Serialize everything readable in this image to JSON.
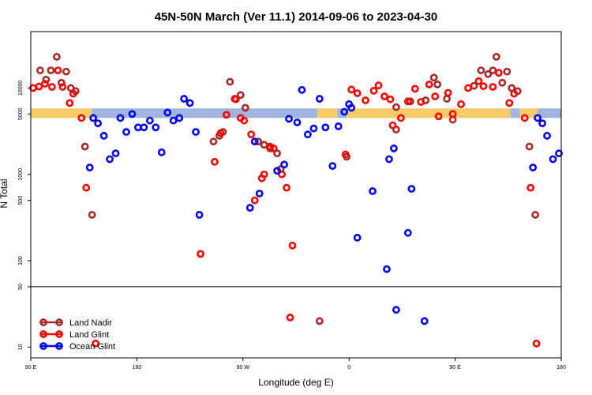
{
  "chart_data": {
    "type": "scatter",
    "title": "45N-50N March (Ver 11.1)   2014-09-06 to 2023-04-30",
    "xlabel": "Longitude (deg E)",
    "ylabel": "N Total",
    "y_scale": "log",
    "ylim": [
      7.5,
      45000
    ],
    "x_reference_line_at": 50,
    "x_ticks": [
      {
        "x": 90,
        "label": "90 E"
      },
      {
        "x": 180,
        "label": "180"
      },
      {
        "x": 270,
        "label": "90 W"
      },
      {
        "x": 360,
        "label": "0"
      },
      {
        "x": 450,
        "label": "90 E"
      },
      {
        "x": 540,
        "label": "180"
      }
    ],
    "y_ticks": [
      {
        "y": 10,
        "label": "10"
      },
      {
        "y": 50,
        "label": "50"
      },
      {
        "y": 100,
        "label": "100"
      },
      {
        "y": 500,
        "label": "500"
      },
      {
        "y": 1000,
        "label": "1000"
      },
      {
        "y": 5000,
        "label": "5000"
      },
      {
        "y": 10000,
        "label": "10000"
      }
    ],
    "band": {
      "y_low": 4500,
      "y_high": 5800,
      "segments": [
        {
          "x0": 90,
          "x1": 142,
          "color": "#f5cc68"
        },
        {
          "x0": 142,
          "x1": 333,
          "color": "#9fb4de"
        },
        {
          "x0": 333,
          "x1": 350,
          "color": "#f5cc68"
        },
        {
          "x0": 350,
          "x1": 358,
          "color": "#9fb4de"
        },
        {
          "x0": 358,
          "x1": 497,
          "color": "#f5cc68"
        },
        {
          "x0": 497,
          "x1": 505,
          "color": "#9fb4de"
        },
        {
          "x0": 505,
          "x1": 520,
          "color": "#f5cc68"
        },
        {
          "x0": 520,
          "x1": 540,
          "color": "#9fb4de"
        }
      ]
    },
    "legend_position": "bottom-left",
    "series": [
      {
        "name": "Land Nadir",
        "color": "#a52a2a",
        "points": [
          {
            "x": 98,
            "y": 16000
          },
          {
            "x": 103,
            "y": 12500
          },
          {
            "x": 107,
            "y": 16000
          },
          {
            "x": 112,
            "y": 23000
          },
          {
            "x": 116,
            "y": 11500
          },
          {
            "x": 120,
            "y": 15500
          },
          {
            "x": 124,
            "y": 10000
          },
          {
            "x": 128,
            "y": 9200
          },
          {
            "x": 136,
            "y": 2100
          },
          {
            "x": 142,
            "y": 340
          },
          {
            "x": 245,
            "y": 2400
          },
          {
            "x": 250,
            "y": 2800
          },
          {
            "x": 253,
            "y": 3100
          },
          {
            "x": 259,
            "y": 11800
          },
          {
            "x": 264,
            "y": 7400
          },
          {
            "x": 268,
            "y": 8300
          },
          {
            "x": 272,
            "y": 5900
          },
          {
            "x": 283,
            "y": 2400
          },
          {
            "x": 288,
            "y": 2200
          },
          {
            "x": 293,
            "y": 2000
          },
          {
            "x": 299,
            "y": 1750
          },
          {
            "x": 302,
            "y": 1150
          },
          {
            "x": 335,
            "y": 20
          },
          {
            "x": 358,
            "y": 1600
          },
          {
            "x": 400,
            "y": 6000
          },
          {
            "x": 400,
            "y": 3300
          },
          {
            "x": 412,
            "y": 7000
          },
          {
            "x": 425,
            "y": 7200
          },
          {
            "x": 432,
            "y": 13200
          },
          {
            "x": 435,
            "y": 11000
          },
          {
            "x": 443,
            "y": 7500
          },
          {
            "x": 448,
            "y": 4300
          },
          {
            "x": 466,
            "y": 10600
          },
          {
            "x": 472,
            "y": 16000
          },
          {
            "x": 478,
            "y": 14500
          },
          {
            "x": 482,
            "y": 16000
          },
          {
            "x": 485,
            "y": 23000
          },
          {
            "x": 490,
            "y": 11500
          },
          {
            "x": 494,
            "y": 15500
          },
          {
            "x": 498,
            "y": 10000
          },
          {
            "x": 503,
            "y": 9200
          },
          {
            "x": 513,
            "y": 2100
          },
          {
            "x": 518,
            "y": 340
          }
        ]
      },
      {
        "name": "Land Glint",
        "color": "#ff0000",
        "points": [
          {
            "x": 92,
            "y": 10000
          },
          {
            "x": 97,
            "y": 10400
          },
          {
            "x": 102,
            "y": 11200
          },
          {
            "x": 108,
            "y": 10300
          },
          {
            "x": 113,
            "y": 16000
          },
          {
            "x": 117,
            "y": 10300
          },
          {
            "x": 123,
            "y": 6700
          },
          {
            "x": 126,
            "y": 8600
          },
          {
            "x": 133,
            "y": 4500
          },
          {
            "x": 137,
            "y": 700
          },
          {
            "x": 145,
            "y": 11
          },
          {
            "x": 234,
            "y": 120
          },
          {
            "x": 246,
            "y": 1400
          },
          {
            "x": 251,
            "y": 3000
          },
          {
            "x": 256,
            "y": 4900
          },
          {
            "x": 263,
            "y": 7500
          },
          {
            "x": 268,
            "y": 4500
          },
          {
            "x": 271,
            "y": 4200
          },
          {
            "x": 277,
            "y": 2900
          },
          {
            "x": 280,
            "y": 500
          },
          {
            "x": 286,
            "y": 900
          },
          {
            "x": 288,
            "y": 1000
          },
          {
            "x": 293,
            "y": 2100
          },
          {
            "x": 296,
            "y": 2000
          },
          {
            "x": 303,
            "y": 1000
          },
          {
            "x": 307,
            "y": 700
          },
          {
            "x": 310,
            "y": 22
          },
          {
            "x": 312,
            "y": 150
          },
          {
            "x": 357,
            "y": 1700
          },
          {
            "x": 362,
            "y": 9600
          },
          {
            "x": 367,
            "y": 8700
          },
          {
            "x": 374,
            "y": 7200
          },
          {
            "x": 381,
            "y": 9300
          },
          {
            "x": 385,
            "y": 10700
          },
          {
            "x": 390,
            "y": 8000
          },
          {
            "x": 395,
            "y": 7400
          },
          {
            "x": 397,
            "y": 3700
          },
          {
            "x": 404,
            "y": 4500
          },
          {
            "x": 410,
            "y": 7000
          },
          {
            "x": 416,
            "y": 9800
          },
          {
            "x": 421,
            "y": 6900
          },
          {
            "x": 428,
            "y": 11000
          },
          {
            "x": 433,
            "y": 8000
          },
          {
            "x": 436,
            "y": 4700
          },
          {
            "x": 444,
            "y": 8800
          },
          {
            "x": 448,
            "y": 5000
          },
          {
            "x": 455,
            "y": 6500
          },
          {
            "x": 461,
            "y": 10000
          },
          {
            "x": 470,
            "y": 12000
          },
          {
            "x": 474,
            "y": 10500
          },
          {
            "x": 482,
            "y": 10300
          },
          {
            "x": 487,
            "y": 15000
          },
          {
            "x": 496,
            "y": 6700
          },
          {
            "x": 500,
            "y": 8600
          },
          {
            "x": 509,
            "y": 4500
          },
          {
            "x": 514,
            "y": 700
          },
          {
            "x": 519,
            "y": 11
          }
        ]
      },
      {
        "name": "Ocean Glint",
        "color": "#0000ee",
        "points": [
          {
            "x": 140,
            "y": 1200
          },
          {
            "x": 143,
            "y": 4500
          },
          {
            "x": 147,
            "y": 3900
          },
          {
            "x": 152,
            "y": 2800
          },
          {
            "x": 157,
            "y": 1500
          },
          {
            "x": 162,
            "y": 1750
          },
          {
            "x": 166,
            "y": 4500
          },
          {
            "x": 171,
            "y": 3100
          },
          {
            "x": 176,
            "y": 5000
          },
          {
            "x": 181,
            "y": 3500
          },
          {
            "x": 186,
            "y": 3500
          },
          {
            "x": 191,
            "y": 4200
          },
          {
            "x": 196,
            "y": 3500
          },
          {
            "x": 201,
            "y": 1800
          },
          {
            "x": 206,
            "y": 5200
          },
          {
            "x": 211,
            "y": 4200
          },
          {
            "x": 216,
            "y": 4500
          },
          {
            "x": 220,
            "y": 7500
          },
          {
            "x": 225,
            "y": 6700
          },
          {
            "x": 230,
            "y": 3100
          },
          {
            "x": 233,
            "y": 340
          },
          {
            "x": 276,
            "y": 410
          },
          {
            "x": 280,
            "y": 2400
          },
          {
            "x": 284,
            "y": 600
          },
          {
            "x": 299,
            "y": 1100
          },
          {
            "x": 305,
            "y": 1300
          },
          {
            "x": 309,
            "y": 4400
          },
          {
            "x": 316,
            "y": 4000
          },
          {
            "x": 320,
            "y": 9500
          },
          {
            "x": 325,
            "y": 2900
          },
          {
            "x": 330,
            "y": 3400
          },
          {
            "x": 335,
            "y": 7500
          },
          {
            "x": 340,
            "y": 3500
          },
          {
            "x": 346,
            "y": 1250
          },
          {
            "x": 351,
            "y": 3600
          },
          {
            "x": 356,
            "y": 5300
          },
          {
            "x": 360,
            "y": 6500
          },
          {
            "x": 362,
            "y": 5900
          },
          {
            "x": 367,
            "y": 185
          },
          {
            "x": 380,
            "y": 640
          },
          {
            "x": 392,
            "y": 80
          },
          {
            "x": 394,
            "y": 1500
          },
          {
            "x": 398,
            "y": 2000
          },
          {
            "x": 400,
            "y": 27
          },
          {
            "x": 410,
            "y": 210
          },
          {
            "x": 413,
            "y": 680
          },
          {
            "x": 424,
            "y": 20
          },
          {
            "x": 516,
            "y": 1200
          },
          {
            "x": 520,
            "y": 4500
          },
          {
            "x": 524,
            "y": 3900
          },
          {
            "x": 528,
            "y": 2800
          },
          {
            "x": 533,
            "y": 1500
          },
          {
            "x": 538,
            "y": 1750
          }
        ]
      }
    ]
  }
}
